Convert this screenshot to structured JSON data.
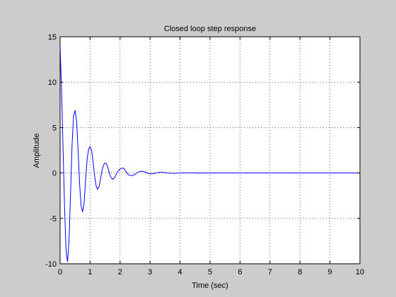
{
  "figure": {
    "background": "#cccccc",
    "axes_background": "#ffffff",
    "line_color": "#0000ff",
    "grid_color": "#000000"
  },
  "chart_data": {
    "type": "line",
    "title": "Closed loop step response",
    "xlabel": "Time (sec)",
    "ylabel": "Amplitude",
    "xlim": [
      0,
      10
    ],
    "ylim": [
      -10,
      15
    ],
    "xticks": [
      0,
      1,
      2,
      3,
      4,
      5,
      6,
      7,
      8,
      9,
      10
    ],
    "yticks": [
      -10,
      -5,
      0,
      5,
      10,
      15
    ],
    "xtick_labels": [
      "0",
      "1",
      "2",
      "3",
      "4",
      "5",
      "6",
      "7",
      "8",
      "9",
      "10"
    ],
    "ytick_labels": [
      "-10",
      "-5",
      "0",
      "5",
      "10",
      "15"
    ],
    "grid": true,
    "grid_style": "dotted",
    "series": [
      {
        "x": [
          0,
          0.05,
          0.1,
          0.15,
          0.2,
          0.25,
          0.3,
          0.35,
          0.4,
          0.45,
          0.5,
          0.55,
          0.6,
          0.65,
          0.7,
          0.75,
          0.8,
          0.85,
          0.9,
          0.95,
          1.0,
          1.05,
          1.1,
          1.15,
          1.2,
          1.25,
          1.3,
          1.35,
          1.4,
          1.45,
          1.5,
          1.55,
          1.6,
          1.65,
          1.7,
          1.75,
          1.8,
          1.85,
          1.9,
          2.0,
          2.1,
          2.15,
          2.2,
          2.25,
          2.3,
          2.4,
          2.5,
          2.55,
          2.6,
          2.7,
          2.8,
          2.9,
          2.95,
          3.0,
          3.1,
          3.2,
          3.3,
          3.4,
          3.5,
          3.6,
          3.7,
          3.8,
          3.9,
          4.0,
          4.2,
          4.3,
          4.5,
          4.7,
          4.9,
          5.0,
          5.2,
          5.5,
          6.0,
          6.5,
          7.0,
          8.0,
          9.0,
          10.0
        ],
        "y": [
          14.0,
          9.0,
          2.5,
          -4.0,
          -8.6,
          -9.8,
          -7.2,
          -2.0,
          3.2,
          6.3,
          6.9,
          5.7,
          2.5,
          -1.2,
          -3.6,
          -4.3,
          -3.3,
          -0.8,
          1.5,
          2.6,
          2.9,
          2.5,
          1.2,
          -0.3,
          -1.4,
          -1.8,
          -1.5,
          -0.6,
          0.3,
          0.9,
          1.1,
          1.0,
          0.5,
          -0.1,
          -0.5,
          -0.7,
          -0.6,
          -0.3,
          0.05,
          0.45,
          0.55,
          0.4,
          0.15,
          -0.1,
          -0.25,
          -0.3,
          -0.15,
          0.0,
          0.1,
          0.2,
          0.15,
          0.0,
          -0.05,
          -0.1,
          -0.08,
          0.0,
          0.06,
          0.08,
          0.04,
          0.0,
          -0.03,
          -0.04,
          -0.02,
          0.0,
          0.02,
          0.02,
          0.0,
          -0.01,
          0.01,
          0.0,
          0.0,
          0.0,
          0.0,
          0.0,
          0.0,
          0.0,
          0.0,
          0.0
        ]
      }
    ]
  }
}
